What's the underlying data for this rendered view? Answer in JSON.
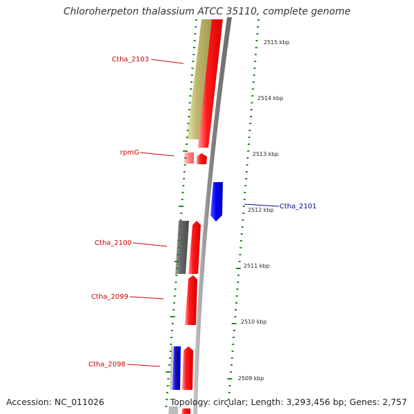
{
  "title": "Chloroherpeton thalassium ATCC 35110, complete genome",
  "accession": "Accession: NC_011026",
  "topology": "Topology: circular; Length: 3,293,456 bp; Genes: 2,757",
  "colors": {
    "label_red": "#cc0000",
    "label_blue": "#000099",
    "tick_green": "#1a8a1a",
    "backbone": "#8a8a8a",
    "gene_red": "#ff0000",
    "gene_blue": "#0000ff",
    "gene_khaki": "#bdb76b",
    "gene_gray": "#666666"
  },
  "gene_labels": [
    {
      "id": "ctha-2103",
      "text": "Ctha_2103",
      "color": "red"
    },
    {
      "id": "rpmg",
      "text": "rpmG",
      "color": "red"
    },
    {
      "id": "ctha-2101",
      "text": "Ctha_2101",
      "color": "blue"
    },
    {
      "id": "ctha-2100",
      "text": "Ctha_2100",
      "color": "red"
    },
    {
      "id": "ctha-2099",
      "text": "Ctha_2099",
      "color": "red"
    },
    {
      "id": "ctha-2098",
      "text": "Ctha_2098",
      "color": "red"
    }
  ],
  "kbp_labels": [
    "2515 kbp",
    "2514 kbp",
    "2513 kbp",
    "2512 kbp",
    "2511 kbp",
    "2510 kbp",
    "2509 kbp"
  ]
}
